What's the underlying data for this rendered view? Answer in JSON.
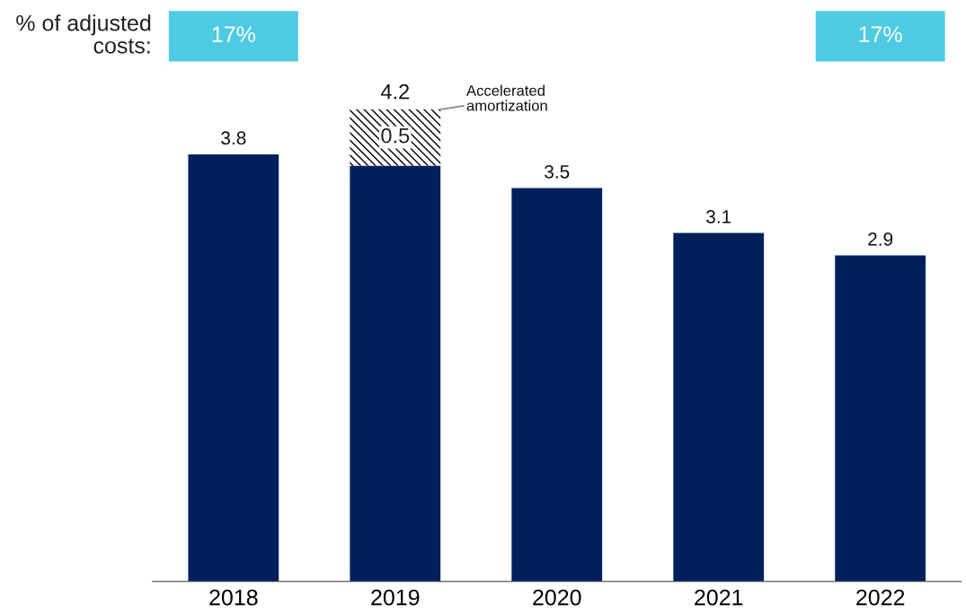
{
  "chart_data": {
    "type": "bar",
    "stacked": true,
    "categories": [
      "2018",
      "2019",
      "2020",
      "2021",
      "2022"
    ],
    "series": [
      {
        "color": "#00205b",
        "values": [
          3.8,
          3.7,
          3.5,
          3.1,
          2.9
        ]
      },
      {
        "name": "Accelerated\namortization",
        "color": "#ffffff",
        "values": [
          null,
          0.5,
          null,
          null,
          null
        ],
        "value_labels": [
          null,
          "0.5",
          null,
          null,
          null
        ]
      }
    ],
    "totals": [
      "3.8",
      "4.2",
      "3.5",
      "3.1",
      "2.9"
    ],
    "annotations": [
      "% of adjusted\ncosts:",
      "17%",
      "17%"
    ],
    "grid": false,
    "legend": false
  }
}
